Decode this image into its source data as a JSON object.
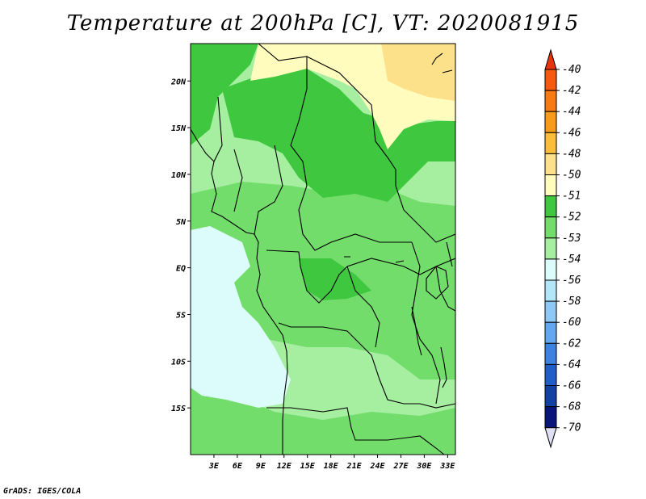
{
  "title": "Temperature at 200hPa [C], VT: 2020081915",
  "credit": "GrADS: IGES/COLA",
  "map": {
    "lon_range": [
      0,
      34
    ],
    "lat_range": [
      -20,
      24
    ],
    "lon_ticks": [
      {
        "value": 3,
        "label": "3E"
      },
      {
        "value": 6,
        "label": "6E"
      },
      {
        "value": 9,
        "label": "9E"
      },
      {
        "value": 12,
        "label": "12E"
      },
      {
        "value": 15,
        "label": "15E"
      },
      {
        "value": 18,
        "label": "18E"
      },
      {
        "value": 21,
        "label": "21E"
      },
      {
        "value": 24,
        "label": "24E"
      },
      {
        "value": 27,
        "label": "27E"
      },
      {
        "value": 30,
        "label": "30E"
      },
      {
        "value": 33,
        "label": "33E"
      }
    ],
    "lat_ticks": [
      {
        "value": 20,
        "label": "20N"
      },
      {
        "value": 15,
        "label": "15N"
      },
      {
        "value": 10,
        "label": "10N"
      },
      {
        "value": 5,
        "label": "5N"
      },
      {
        "value": 0,
        "label": "EQ"
      },
      {
        "value": -5,
        "label": "5S"
      },
      {
        "value": -10,
        "label": "10S"
      },
      {
        "value": -15,
        "label": "15S"
      }
    ]
  },
  "colorbar": {
    "levels": [
      "-40",
      "-42",
      "-44",
      "-46",
      "-48",
      "-50",
      "-51",
      "-52",
      "-53",
      "-54",
      "-56",
      "-58",
      "-60",
      "-62",
      "-64",
      "-66",
      "-68",
      "-70"
    ],
    "colors": [
      "#e8340e",
      "#f65a0f",
      "#f77a12",
      "#f99b1a",
      "#fbbd3a",
      "#fde18a",
      "#fffcbe",
      "#3fc83f",
      "#73dd6b",
      "#a6eea0",
      "#dcfbfb",
      "#b4e6fa",
      "#8ec8f6",
      "#62a7ef",
      "#3b82e1",
      "#1f5ec9",
      "#1240a5",
      "#09157a",
      "#e0e0f5"
    ]
  },
  "field_colors": {
    "land_base": "#a6eea0",
    "c52": "#3fc83f",
    "c53": "#73dd6b",
    "c54": "#dcfbfb",
    "c51": "#fffcbe",
    "c50": "#fde18a"
  }
}
